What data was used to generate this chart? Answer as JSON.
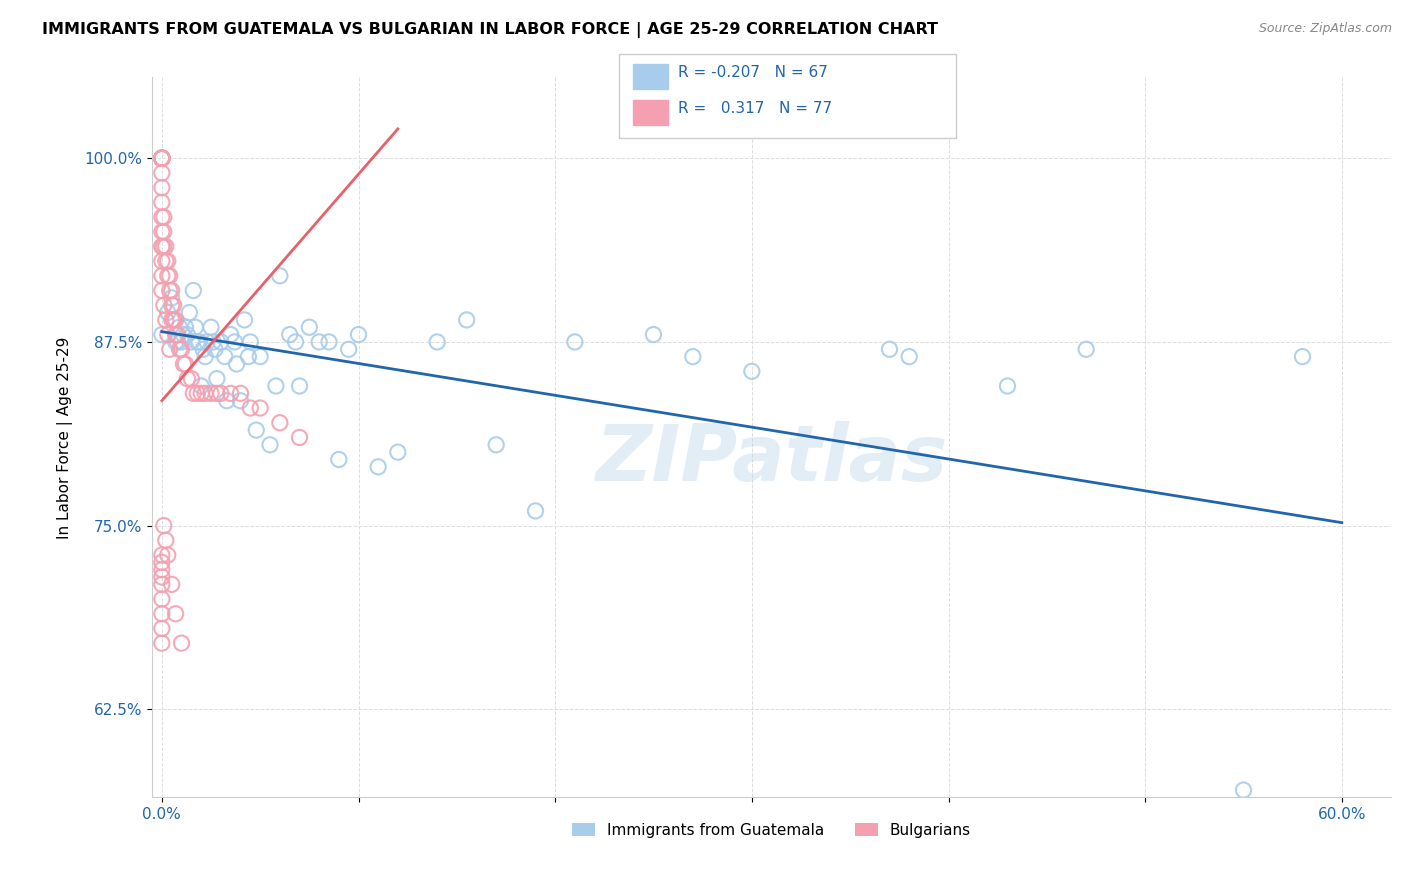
{
  "title": "IMMIGRANTS FROM GUATEMALA VS BULGARIAN IN LABOR FORCE | AGE 25-29 CORRELATION CHART",
  "source": "Source: ZipAtlas.com",
  "ylabel": "In Labor Force | Age 25-29",
  "x_ticks": [
    0.0,
    0.1,
    0.2,
    0.3,
    0.4,
    0.5,
    0.6
  ],
  "y_ticks": [
    0.625,
    0.75,
    0.875,
    1.0
  ],
  "xlim": [
    -0.005,
    0.625
  ],
  "ylim": [
    0.565,
    1.055
  ],
  "blue_color": "#A8CCEB",
  "pink_color": "#F4A0B0",
  "blue_line_color": "#2166AC",
  "pink_line_color": "#E8606A",
  "R_blue": -0.207,
  "N_blue": 67,
  "R_pink": 0.317,
  "N_pink": 77,
  "legend_label_blue": "Immigrants from Guatemala",
  "legend_label_pink": "Bulgarians",
  "watermark": "ZIPatlas",
  "blue_line_x": [
    0.0,
    0.6
  ],
  "blue_line_y": [
    0.882,
    0.752
  ],
  "pink_line_x": [
    0.0,
    0.12
  ],
  "pink_line_y": [
    0.835,
    1.02
  ],
  "blue_scatter_x": [
    0.0,
    0.0,
    0.0,
    0.003,
    0.005,
    0.006,
    0.007,
    0.008,
    0.009,
    0.01,
    0.011,
    0.012,
    0.013,
    0.014,
    0.015,
    0.016,
    0.017,
    0.018,
    0.019,
    0.02,
    0.021,
    0.022,
    0.023,
    0.025,
    0.026,
    0.027,
    0.028,
    0.03,
    0.032,
    0.033,
    0.035,
    0.037,
    0.038,
    0.04,
    0.042,
    0.044,
    0.045,
    0.048,
    0.05,
    0.055,
    0.058,
    0.06,
    0.065,
    0.068,
    0.07,
    0.075,
    0.08,
    0.085,
    0.09,
    0.095,
    0.1,
    0.11,
    0.12,
    0.14,
    0.155,
    0.17,
    0.19,
    0.21,
    0.25,
    0.27,
    0.3,
    0.37,
    0.38,
    0.43,
    0.47,
    0.55,
    0.58
  ],
  "blue_scatter_y": [
    1.0,
    0.94,
    0.88,
    0.895,
    0.905,
    0.89,
    0.875,
    0.875,
    0.885,
    0.875,
    0.88,
    0.885,
    0.88,
    0.895,
    0.875,
    0.91,
    0.885,
    0.875,
    0.875,
    0.845,
    0.87,
    0.865,
    0.875,
    0.885,
    0.875,
    0.87,
    0.85,
    0.875,
    0.865,
    0.835,
    0.88,
    0.875,
    0.86,
    0.835,
    0.89,
    0.865,
    0.875,
    0.815,
    0.865,
    0.805,
    0.845,
    0.92,
    0.88,
    0.875,
    0.845,
    0.885,
    0.875,
    0.875,
    0.795,
    0.87,
    0.88,
    0.79,
    0.8,
    0.875,
    0.89,
    0.805,
    0.76,
    0.875,
    0.88,
    0.865,
    0.855,
    0.87,
    0.865,
    0.845,
    0.87,
    0.57,
    0.865
  ],
  "pink_scatter_x": [
    0.0,
    0.0,
    0.0,
    0.0,
    0.0,
    0.0,
    0.0,
    0.0,
    0.0,
    0.0,
    0.0,
    0.0,
    0.0,
    0.0,
    0.0,
    0.0,
    0.0,
    0.0,
    0.0,
    0.0,
    0.001,
    0.001,
    0.001,
    0.002,
    0.002,
    0.003,
    0.003,
    0.004,
    0.004,
    0.005,
    0.005,
    0.005,
    0.006,
    0.006,
    0.007,
    0.007,
    0.008,
    0.009,
    0.01,
    0.011,
    0.012,
    0.013,
    0.015,
    0.016,
    0.018,
    0.02,
    0.022,
    0.025,
    0.028,
    0.03,
    0.035,
    0.04,
    0.045,
    0.05,
    0.06,
    0.07,
    0.0,
    0.0,
    0.001,
    0.002,
    0.003,
    0.004,
    0.0,
    0.0,
    0.0,
    0.0,
    0.0,
    0.0,
    0.0,
    0.0,
    0.0,
    0.001,
    0.002,
    0.003,
    0.005,
    0.007,
    0.01
  ],
  "pink_scatter_y": [
    1.0,
    1.0,
    1.0,
    1.0,
    1.0,
    1.0,
    1.0,
    1.0,
    1.0,
    1.0,
    1.0,
    1.0,
    1.0,
    0.99,
    0.98,
    0.97,
    0.96,
    0.95,
    0.94,
    0.93,
    0.96,
    0.95,
    0.94,
    0.94,
    0.93,
    0.93,
    0.92,
    0.92,
    0.91,
    0.91,
    0.9,
    0.89,
    0.9,
    0.89,
    0.89,
    0.88,
    0.88,
    0.87,
    0.87,
    0.86,
    0.86,
    0.85,
    0.85,
    0.84,
    0.84,
    0.84,
    0.84,
    0.84,
    0.84,
    0.84,
    0.84,
    0.84,
    0.83,
    0.83,
    0.82,
    0.81,
    0.92,
    0.91,
    0.9,
    0.89,
    0.88,
    0.87,
    0.73,
    0.725,
    0.72,
    0.715,
    0.71,
    0.7,
    0.69,
    0.68,
    0.67,
    0.75,
    0.74,
    0.73,
    0.71,
    0.69,
    0.67
  ]
}
